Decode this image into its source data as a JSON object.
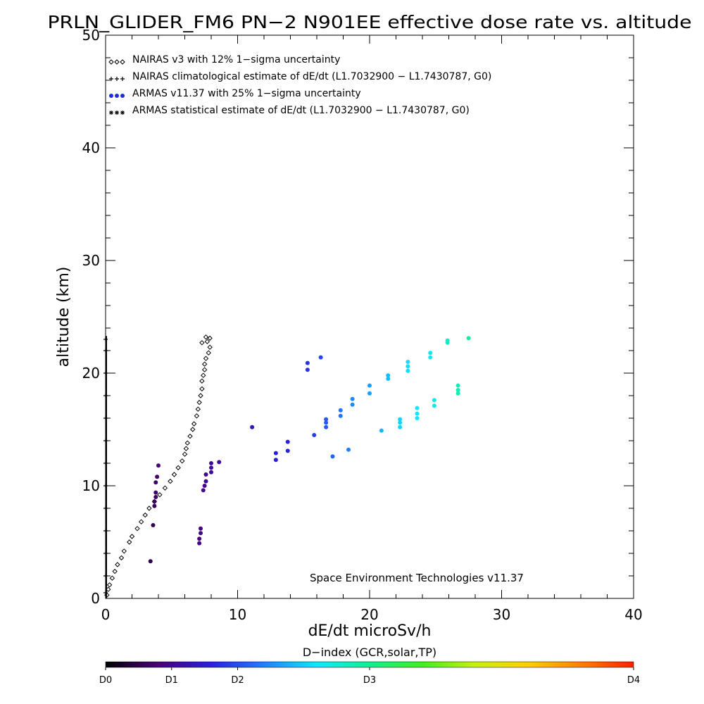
{
  "chart_data": {
    "type": "scatter",
    "title": "PRLN_GLIDER_FM6 PN−2 N901EE effective dose rate vs. altitude",
    "xlabel": "dE/dt microSv/h",
    "ylabel": "altitude (km)",
    "xlim": [
      0,
      40
    ],
    "ylim": [
      0,
      50
    ],
    "x_ticks": [
      "0",
      "10",
      "20",
      "30",
      "40"
    ],
    "y_ticks": [
      "0",
      "10",
      "20",
      "30",
      "40",
      "50"
    ],
    "x_tick_values": [
      0,
      10,
      20,
      30,
      40
    ],
    "y_tick_values": [
      0,
      10,
      20,
      30,
      40,
      50
    ],
    "legend_position": "top-left",
    "legend": [
      {
        "label": "NAIRAS v3 with 12% 1−sigma uncertainty",
        "marker": "diamond",
        "color": "#000000"
      },
      {
        "label": "NAIRAS climatological estimate of dE/dt (L1.7032900 − L1.7430787, G0)",
        "marker": "plus",
        "color": "#000000"
      },
      {
        "label": "ARMAS v11.37 with 25% 1−sigma uncertainty",
        "marker": "dot",
        "color": "#1a2ee0"
      },
      {
        "label": "ARMAS statistical estimate of dE/dt (L1.7032900 − L1.7430787, G0)",
        "marker": "asterisk",
        "color": "#000000"
      }
    ],
    "annotation": "Space Environment Technologies v11.37",
    "colorbar": {
      "title": "D−index (GCR,solar,TP)",
      "labels": [
        {
          "text": "D0",
          "value": 0
        },
        {
          "text": "D1",
          "value": 0.125
        },
        {
          "text": "D2",
          "value": 0.25
        },
        {
          "text": "D3",
          "value": 0.5
        },
        {
          "text": "D4",
          "value": 1.0
        }
      ],
      "colors": [
        "#000000",
        "#4a007a",
        "#2a20e0",
        "#2080ff",
        "#10e8ff",
        "#10f090",
        "#40f020",
        "#c8f010",
        "#ffd000",
        "#ff8000",
        "#ff2000"
      ]
    },
    "series": [
      {
        "name": "NAIRAS v3",
        "marker": "diamond",
        "color": "#000000",
        "points": [
          [
            0.1,
            0.3
          ],
          [
            0.2,
            0.8
          ],
          [
            0.3,
            1.2
          ],
          [
            0.5,
            1.8
          ],
          [
            0.7,
            2.4
          ],
          [
            0.9,
            3.0
          ],
          [
            1.2,
            3.6
          ],
          [
            1.4,
            4.2
          ],
          [
            1.8,
            5.0
          ],
          [
            2.0,
            5.5
          ],
          [
            2.4,
            6.2
          ],
          [
            2.7,
            6.8
          ],
          [
            3.0,
            7.4
          ],
          [
            3.3,
            8.0
          ],
          [
            3.7,
            8.6
          ],
          [
            4.1,
            9.2
          ],
          [
            4.5,
            9.8
          ],
          [
            4.9,
            10.4
          ],
          [
            5.2,
            11.0
          ],
          [
            5.5,
            11.6
          ],
          [
            5.8,
            12.2
          ],
          [
            6.0,
            12.8
          ],
          [
            6.1,
            13.3
          ],
          [
            6.2,
            13.8
          ],
          [
            6.4,
            14.4
          ],
          [
            6.6,
            15.0
          ],
          [
            6.7,
            15.5
          ],
          [
            6.9,
            16.2
          ],
          [
            7.0,
            16.8
          ],
          [
            7.1,
            17.4
          ],
          [
            7.2,
            18.0
          ],
          [
            7.3,
            18.6
          ],
          [
            7.3,
            19.3
          ],
          [
            7.4,
            19.8
          ],
          [
            7.5,
            20.3
          ],
          [
            7.5,
            20.8
          ],
          [
            7.6,
            21.3
          ],
          [
            7.8,
            21.8
          ],
          [
            7.9,
            22.3
          ],
          [
            7.7,
            22.8
          ],
          [
            7.9,
            23.1
          ],
          [
            7.6,
            23.2
          ],
          [
            7.3,
            22.7
          ]
        ]
      },
      {
        "name": "NAIRAS climatological estimate",
        "marker": "plus",
        "color": "#000000",
        "points": [
          [
            0,
            0.5
          ],
          [
            0,
            2
          ],
          [
            0,
            4
          ],
          [
            0,
            6
          ],
          [
            0,
            8
          ],
          [
            0,
            10
          ],
          [
            0,
            12
          ],
          [
            0,
            14
          ],
          [
            0,
            16
          ],
          [
            0,
            18
          ],
          [
            0,
            20
          ],
          [
            0,
            22
          ],
          [
            0,
            23
          ]
        ]
      },
      {
        "name": "ARMAS v11.37",
        "marker": "dot",
        "points": [
          {
            "x": 3.4,
            "y": 3.3,
            "d": 0.06
          },
          {
            "x": 3.6,
            "y": 6.5,
            "d": 0.07
          },
          {
            "x": 3.7,
            "y": 8.2,
            "d": 0.08
          },
          {
            "x": 3.7,
            "y": 8.6,
            "d": 0.08
          },
          {
            "x": 3.8,
            "y": 9.0,
            "d": 0.08
          },
          {
            "x": 3.8,
            "y": 9.4,
            "d": 0.09
          },
          {
            "x": 3.8,
            "y": 10.3,
            "d": 0.09
          },
          {
            "x": 3.9,
            "y": 10.8,
            "d": 0.09
          },
          {
            "x": 4.0,
            "y": 11.8,
            "d": 0.1
          },
          {
            "x": 7.1,
            "y": 4.9,
            "d": 0.11
          },
          {
            "x": 7.1,
            "y": 5.3,
            "d": 0.11
          },
          {
            "x": 7.2,
            "y": 5.8,
            "d": 0.11
          },
          {
            "x": 7.2,
            "y": 6.2,
            "d": 0.11
          },
          {
            "x": 7.4,
            "y": 9.6,
            "d": 0.12
          },
          {
            "x": 7.5,
            "y": 10.0,
            "d": 0.12
          },
          {
            "x": 7.6,
            "y": 10.4,
            "d": 0.12
          },
          {
            "x": 7.6,
            "y": 11.0,
            "d": 0.12
          },
          {
            "x": 8.0,
            "y": 11.2,
            "d": 0.13
          },
          {
            "x": 8.0,
            "y": 11.6,
            "d": 0.13
          },
          {
            "x": 8.0,
            "y": 12.0,
            "d": 0.13
          },
          {
            "x": 8.6,
            "y": 12.1,
            "d": 0.13
          },
          {
            "x": 11.1,
            "y": 15.2,
            "d": 0.17
          },
          {
            "x": 12.9,
            "y": 12.3,
            "d": 0.19
          },
          {
            "x": 12.9,
            "y": 12.9,
            "d": 0.19
          },
          {
            "x": 13.8,
            "y": 13.1,
            "d": 0.2
          },
          {
            "x": 13.8,
            "y": 13.9,
            "d": 0.2
          },
          {
            "x": 15.3,
            "y": 20.3,
            "d": 0.22
          },
          {
            "x": 15.3,
            "y": 20.9,
            "d": 0.22
          },
          {
            "x": 15.8,
            "y": 14.5,
            "d": 0.23
          },
          {
            "x": 16.3,
            "y": 21.4,
            "d": 0.24
          },
          {
            "x": 16.7,
            "y": 15.2,
            "d": 0.26
          },
          {
            "x": 16.7,
            "y": 15.6,
            "d": 0.26
          },
          {
            "x": 16.7,
            "y": 15.9,
            "d": 0.26
          },
          {
            "x": 17.2,
            "y": 12.6,
            "d": 0.27
          },
          {
            "x": 17.8,
            "y": 16.2,
            "d": 0.29
          },
          {
            "x": 17.8,
            "y": 16.7,
            "d": 0.29
          },
          {
            "x": 18.4,
            "y": 13.2,
            "d": 0.3
          },
          {
            "x": 18.7,
            "y": 17.2,
            "d": 0.31
          },
          {
            "x": 18.7,
            "y": 17.7,
            "d": 0.31
          },
          {
            "x": 20.0,
            "y": 18.2,
            "d": 0.33
          },
          {
            "x": 20.0,
            "y": 18.9,
            "d": 0.33
          },
          {
            "x": 20.9,
            "y": 14.9,
            "d": 0.35
          },
          {
            "x": 21.4,
            "y": 19.5,
            "d": 0.36
          },
          {
            "x": 21.4,
            "y": 19.8,
            "d": 0.36
          },
          {
            "x": 22.3,
            "y": 15.2,
            "d": 0.38
          },
          {
            "x": 22.3,
            "y": 15.6,
            "d": 0.38
          },
          {
            "x": 22.3,
            "y": 15.9,
            "d": 0.38
          },
          {
            "x": 22.9,
            "y": 20.2,
            "d": 0.39
          },
          {
            "x": 22.9,
            "y": 20.6,
            "d": 0.39
          },
          {
            "x": 22.9,
            "y": 21.0,
            "d": 0.39
          },
          {
            "x": 23.6,
            "y": 16.0,
            "d": 0.4
          },
          {
            "x": 23.6,
            "y": 16.4,
            "d": 0.4
          },
          {
            "x": 23.6,
            "y": 16.9,
            "d": 0.4
          },
          {
            "x": 24.6,
            "y": 21.4,
            "d": 0.42
          },
          {
            "x": 24.6,
            "y": 21.8,
            "d": 0.42
          },
          {
            "x": 24.9,
            "y": 17.1,
            "d": 0.43
          },
          {
            "x": 24.9,
            "y": 17.6,
            "d": 0.43
          },
          {
            "x": 25.9,
            "y": 22.7,
            "d": 0.45
          },
          {
            "x": 25.9,
            "y": 22.9,
            "d": 0.45
          },
          {
            "x": 26.7,
            "y": 18.2,
            "d": 0.47
          },
          {
            "x": 26.7,
            "y": 18.5,
            "d": 0.47
          },
          {
            "x": 26.7,
            "y": 18.9,
            "d": 0.47
          },
          {
            "x": 27.5,
            "y": 23.1,
            "d": 0.49
          }
        ]
      }
    ]
  }
}
